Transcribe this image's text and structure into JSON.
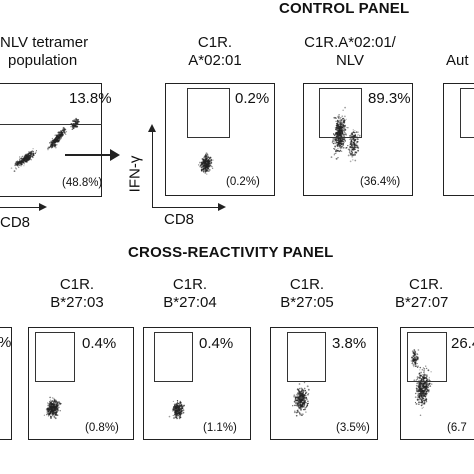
{
  "left_population": {
    "label_lines": [
      "NLV tetramer",
      "population"
    ],
    "gate_percent": "13.8%",
    "sub_percent": "(48.8%)",
    "x_axis_label": "CD8"
  },
  "control_panel": {
    "title": "CONTROL PANEL",
    "y_axis_label": "IFN-γ",
    "x_axis_label": "CD8",
    "plots": [
      {
        "label_lines": [
          "C1R.",
          "A*02:01"
        ],
        "gate_percent": "0.2%",
        "sub_percent": "(0.2%)"
      },
      {
        "label_lines": [
          "C1R.A*02:01/",
          "NLV"
        ],
        "gate_percent": "89.3%",
        "sub_percent": "(36.4%)"
      },
      {
        "label_lines": [
          "Aut"
        ],
        "gate_percent": "",
        "sub_percent": ""
      }
    ]
  },
  "cross_reactivity_panel": {
    "title": "CROSS-REACTIVITY PANEL",
    "plots": [
      {
        "label_lines": [
          "",
          ""
        ],
        "gate_percent": "%",
        "sub_percent": ""
      },
      {
        "label_lines": [
          "C1R.",
          "B*27:03"
        ],
        "gate_percent": "0.4%",
        "sub_percent": "(0.8%)"
      },
      {
        "label_lines": [
          "C1R.",
          "B*27:04"
        ],
        "gate_percent": "0.4%",
        "sub_percent": "(1.1%)"
      },
      {
        "label_lines": [
          "C1R.",
          "B*27:05"
        ],
        "gate_percent": "3.8%",
        "sub_percent": "(3.5%)"
      },
      {
        "label_lines": [
          "C1R.",
          "B*27:07"
        ],
        "gate_percent": "26.4",
        "sub_percent": "(6.7"
      }
    ]
  }
}
